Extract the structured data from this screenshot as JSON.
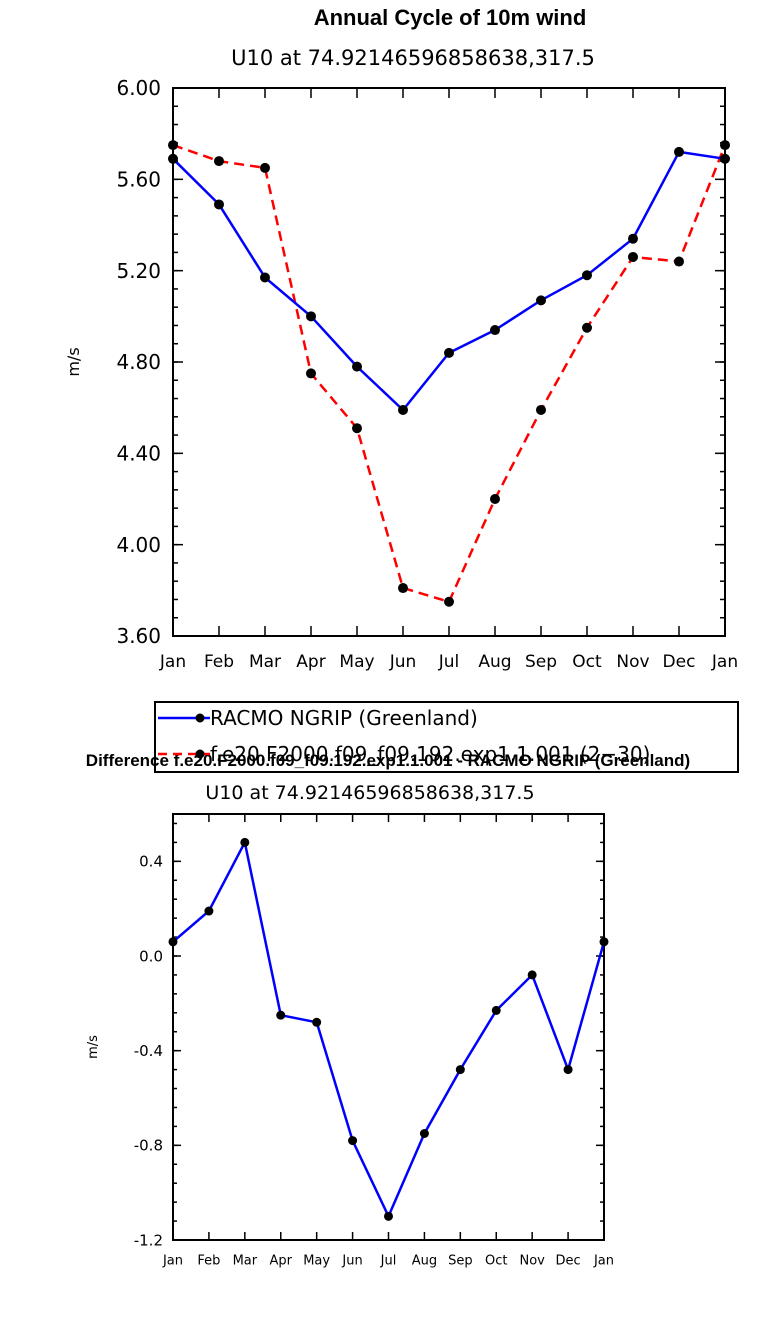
{
  "chart_data": [
    {
      "type": "line",
      "title": "Annual Cycle of 10m wind",
      "subtitle": "U10 at 74.92146596858638,317.5",
      "ylabel": "m/s",
      "xlabel": "",
      "categories": [
        "Jan",
        "Feb",
        "Mar",
        "Apr",
        "May",
        "Jun",
        "Jul",
        "Aug",
        "Sep",
        "Oct",
        "Nov",
        "Dec",
        "Jan"
      ],
      "ylim": [
        3.6,
        6.0
      ],
      "yticks": [
        "3.60",
        "4.00",
        "4.40",
        "4.80",
        "5.20",
        "5.60",
        "6.00"
      ],
      "grid": false,
      "legend_position": "bottom",
      "series": [
        {
          "name": "RACMO NGRIP (Greenland)",
          "color": "#0000ff",
          "dash": "solid",
          "values": [
            5.69,
            5.49,
            5.17,
            5.0,
            4.78,
            4.59,
            4.84,
            4.94,
            5.07,
            5.18,
            5.34,
            5.72,
            5.69
          ]
        },
        {
          "name": "f.e20.F2000.f09_f09.192.exp1.1.001 (2−30)",
          "color": "#ff0000",
          "dash": "dashed",
          "values": [
            5.75,
            5.68,
            5.65,
            4.75,
            4.51,
            3.81,
            3.75,
            4.2,
            4.59,
            4.95,
            5.26,
            5.24,
            5.75
          ]
        }
      ]
    },
    {
      "type": "line",
      "title": "Difference f.e20.F2000.f09_f09.192.exp1.1.001 - RACMO NGRIP (Greenland)",
      "subtitle": "U10 at 74.92146596858638,317.5",
      "ylabel": "m/s",
      "xlabel": "",
      "categories": [
        "Jan",
        "Feb",
        "Mar",
        "Apr",
        "May",
        "Jun",
        "Jul",
        "Aug",
        "Sep",
        "Oct",
        "Nov",
        "Dec",
        "Jan"
      ],
      "ylim": [
        -1.2,
        0.6
      ],
      "yticks": [
        "-1.2",
        "-0.8",
        "-0.4",
        "0.0",
        "0.4"
      ],
      "grid": false,
      "series": [
        {
          "name": "",
          "color": "#0000ff",
          "dash": "solid",
          "values": [
            0.06,
            0.19,
            0.48,
            -0.25,
            -0.28,
            -0.78,
            -1.1,
            -0.75,
            -0.48,
            -0.23,
            -0.08,
            -0.48,
            0.06
          ]
        }
      ]
    }
  ]
}
